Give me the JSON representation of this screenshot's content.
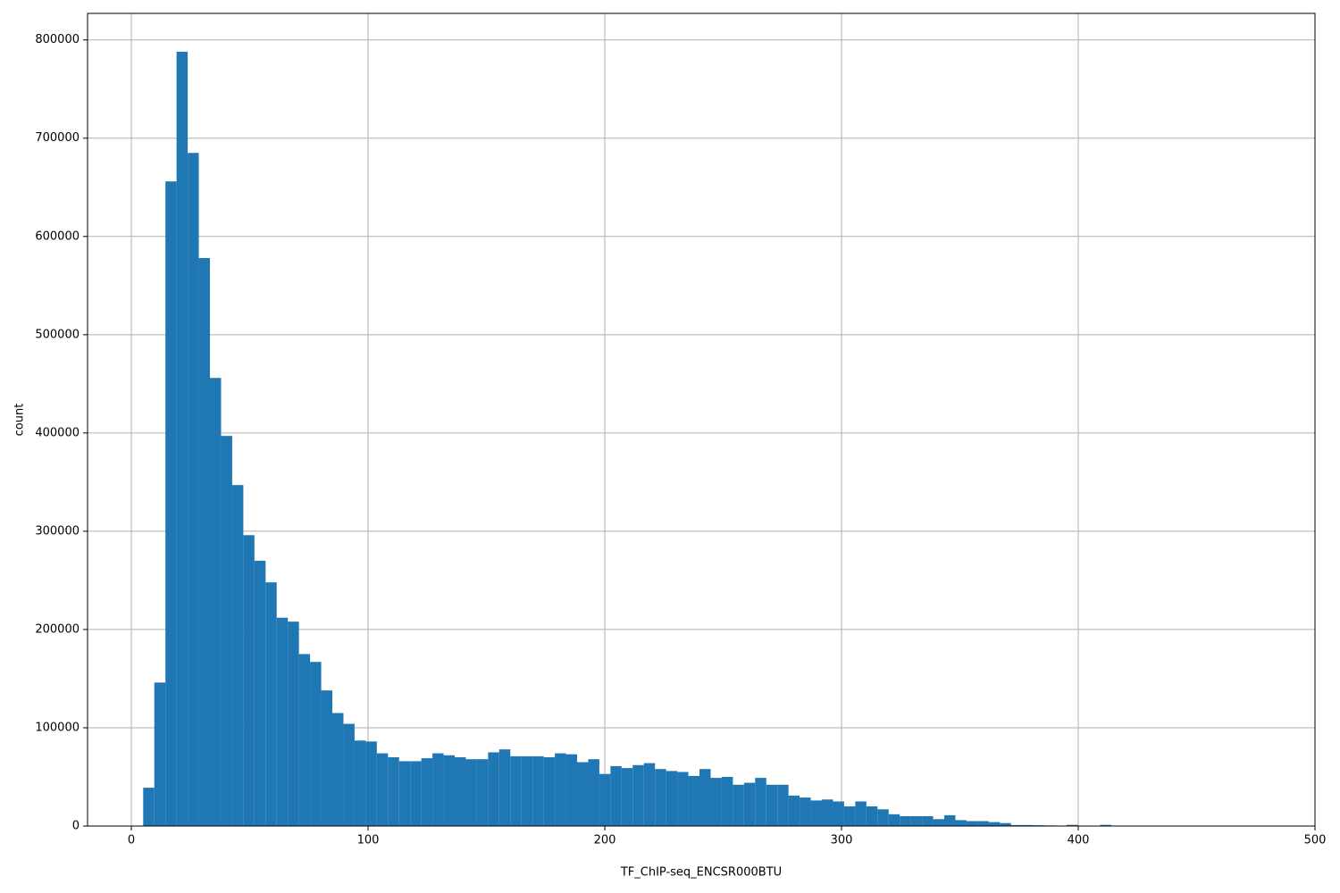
{
  "chart_data": {
    "type": "histogram",
    "xlabel": "TF_ChIP-seq_ENCSR000BTU",
    "ylabel": "count",
    "color": "#1f77b4",
    "grid": true,
    "bins": [
      5,
      9.7,
      14.4,
      19.1,
      23.8,
      28.5,
      33.2,
      37.9,
      42.6,
      47.3,
      52,
      56.7,
      61.4,
      66.1,
      70.8,
      75.5,
      80.2,
      84.9,
      89.6,
      94.3,
      99,
      103.7,
      108.4,
      113.1,
      117.8,
      122.5,
      127.2,
      131.9,
      136.6,
      141.3,
      146,
      150.7,
      155.4,
      160.1,
      164.8,
      169.5,
      174.2,
      178.9,
      183.6,
      188.3,
      193,
      197.7,
      202.4,
      207.1,
      211.8,
      216.5,
      221.2,
      225.9,
      230.6,
      235.3,
      240,
      244.7,
      249.4,
      254.1,
      258.8,
      263.5,
      268.2,
      272.9,
      277.6,
      282.3,
      287,
      291.7,
      296.4,
      301.1,
      305.8,
      310.5,
      315.2,
      319.9,
      324.6,
      329.3,
      334,
      338.7,
      343.4,
      348.1,
      352.8,
      357.5,
      362.2,
      366.9,
      371.6,
      376.3,
      381,
      385.7,
      390.4,
      395.1,
      399.8,
      404.5,
      409.2,
      413.9,
      418.6,
      423.3,
      428,
      432.7,
      437.4,
      442.1,
      446.8,
      451.5,
      456.2,
      460.9,
      465.6,
      470.3,
      475
    ],
    "values": [
      39000,
      146000,
      656000,
      788000,
      685000,
      578000,
      456000,
      397000,
      347000,
      296000,
      270000,
      248000,
      212000,
      208000,
      175000,
      167000,
      138000,
      115000,
      104000,
      87000,
      86000,
      74000,
      70000,
      66000,
      66000,
      69000,
      74000,
      72000,
      70000,
      68000,
      68000,
      75000,
      78000,
      71000,
      71000,
      71000,
      70000,
      74000,
      73000,
      65000,
      68000,
      53000,
      61000,
      59000,
      62000,
      64000,
      58000,
      56000,
      55000,
      51000,
      58000,
      49000,
      50000,
      42000,
      44000,
      49000,
      42000,
      42000,
      31000,
      29000,
      26000,
      27000,
      25000,
      20000,
      25000,
      20000,
      17000,
      12000,
      10000,
      10000,
      10000,
      7000,
      11000,
      6000,
      5000,
      5000,
      4000,
      3000,
      1000,
      1000,
      800,
      600,
      400,
      1200,
      300,
      200,
      1200,
      100,
      0,
      0,
      0,
      0,
      0,
      0,
      0,
      0,
      0,
      0,
      0,
      50
    ],
    "xlim": [
      -18.5,
      500
    ],
    "ylim": [
      0,
      827000
    ],
    "xticks": [
      0,
      100,
      200,
      300,
      400,
      500
    ],
    "yticks": [
      0,
      100000,
      200000,
      300000,
      400000,
      500000,
      600000,
      700000,
      800000
    ]
  }
}
